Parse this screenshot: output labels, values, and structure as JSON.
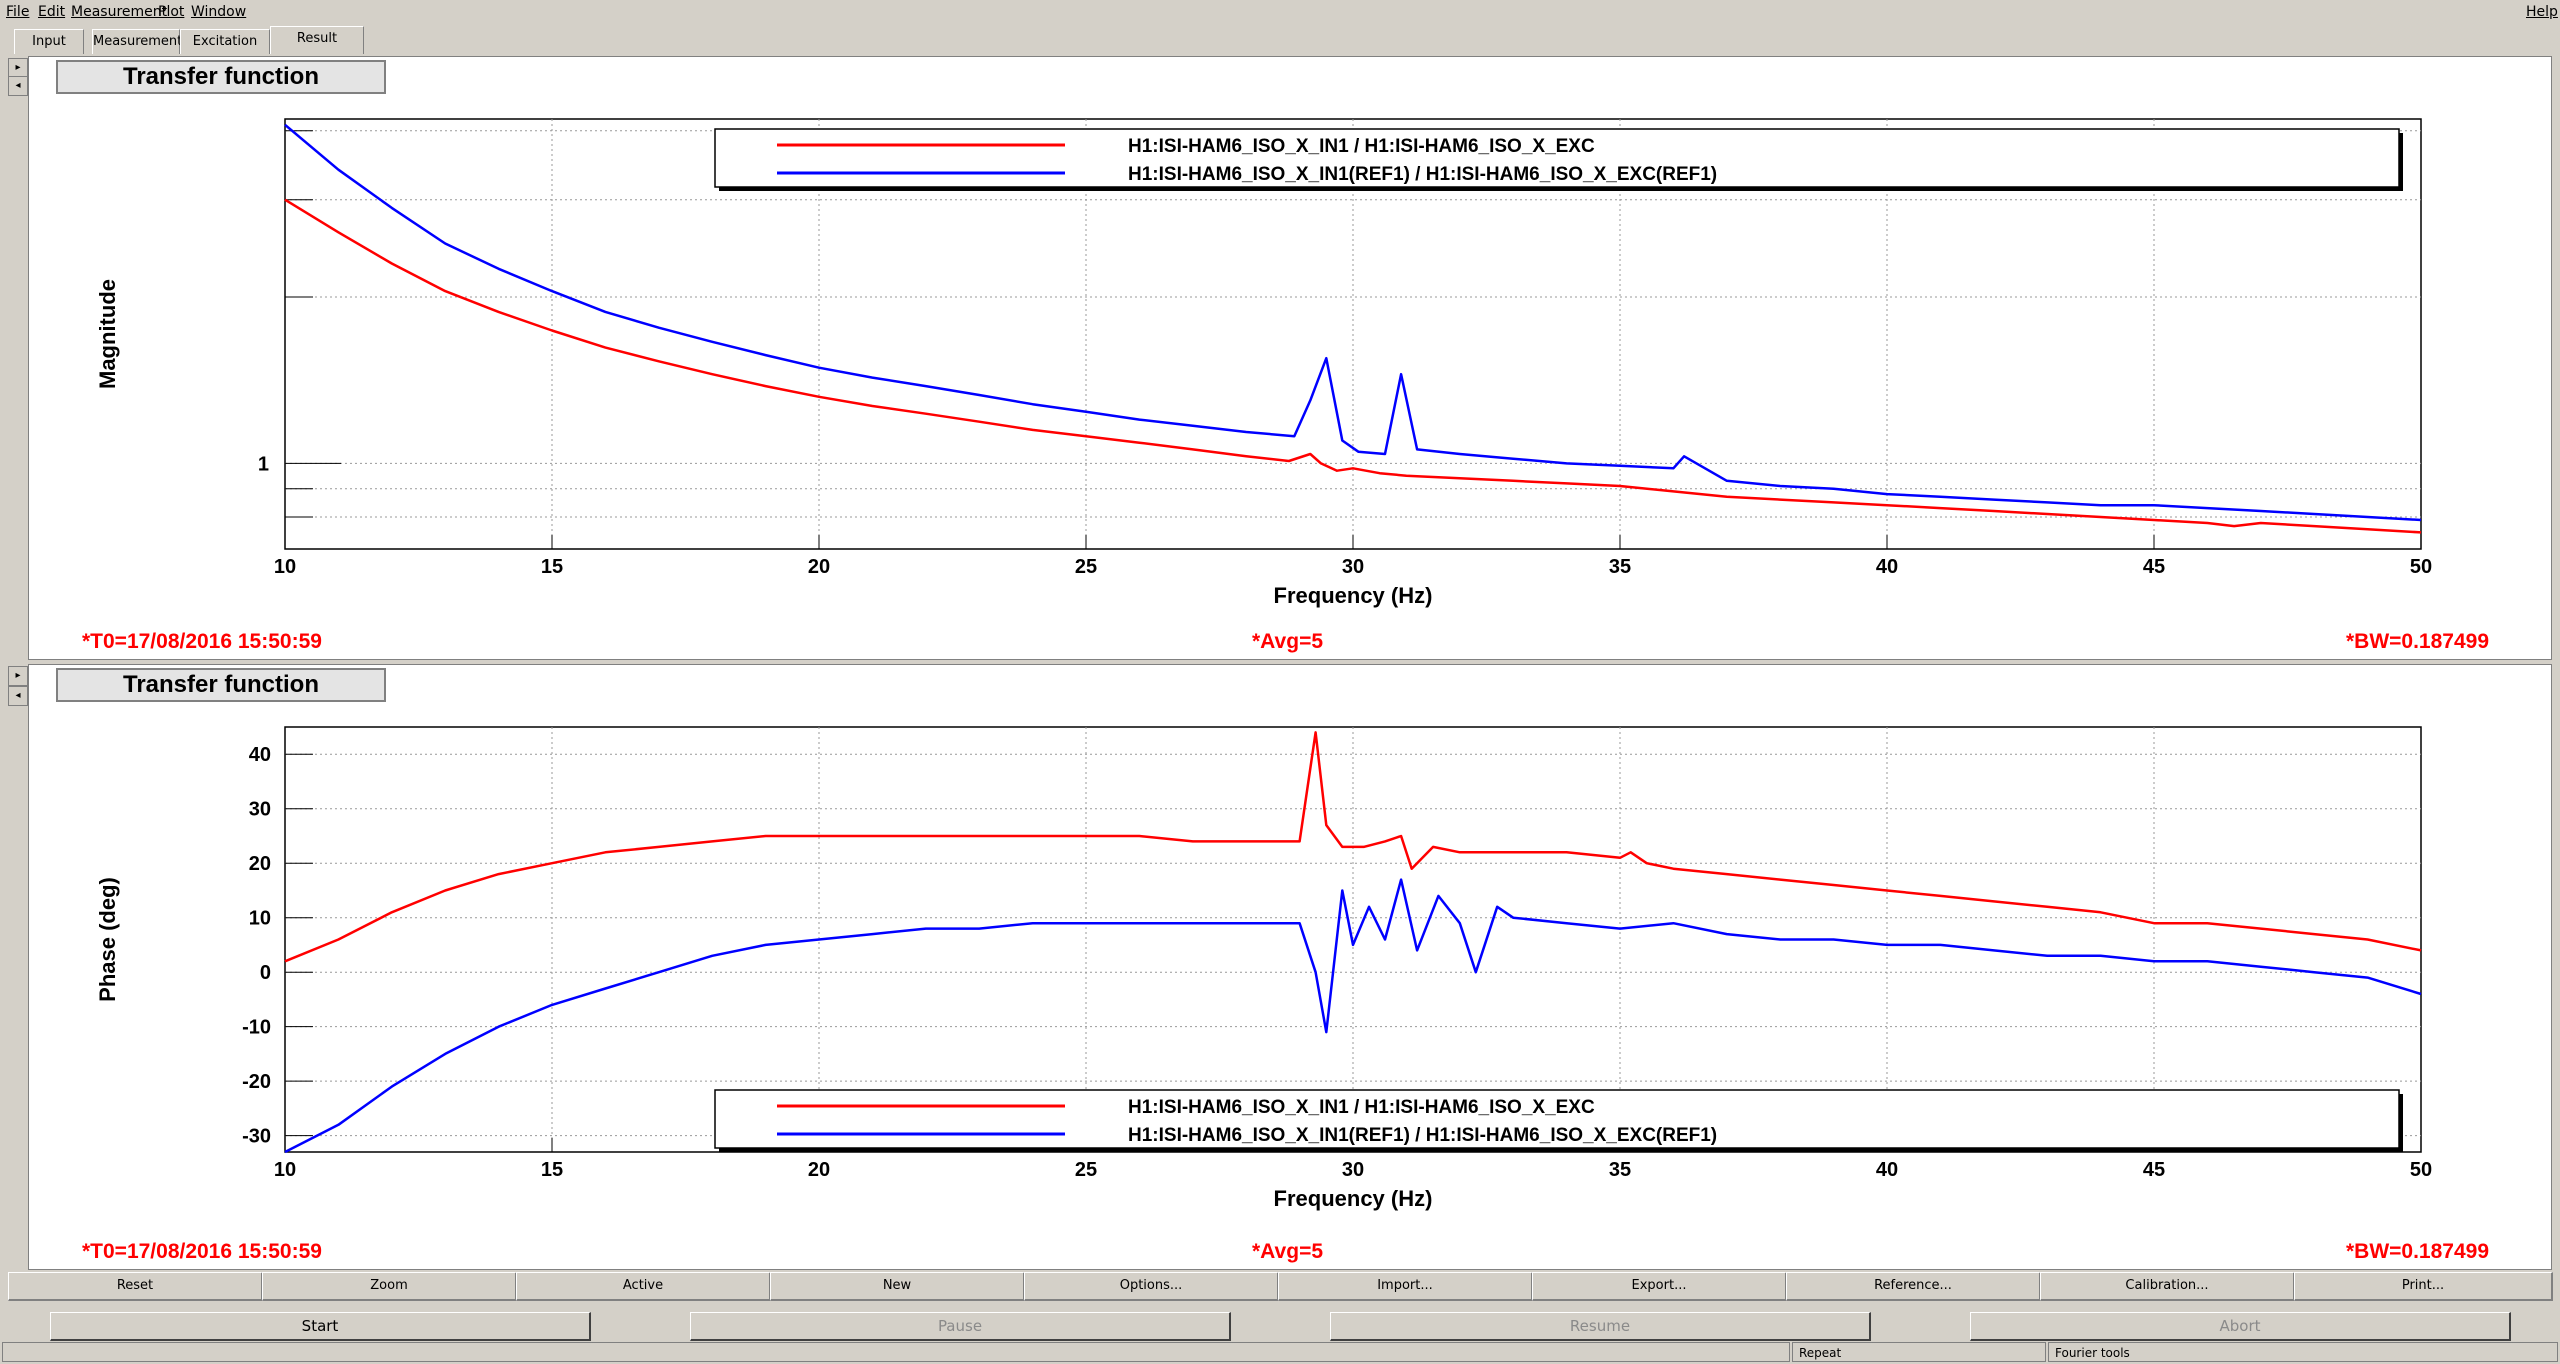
{
  "menu": {
    "items": [
      {
        "label": "File"
      },
      {
        "label": "Edit"
      },
      {
        "label": "Measurement"
      },
      {
        "label": "Plot"
      },
      {
        "label": "Window"
      }
    ],
    "help": "Help"
  },
  "tabs": [
    {
      "label": "Input"
    },
    {
      "label": "Measurement"
    },
    {
      "label": "Excitation"
    },
    {
      "label": "Result",
      "active": true
    }
  ],
  "colors": {
    "series_red": "#ff0000",
    "series_blue": "#0000ff",
    "status_red": "#ff0000",
    "panel_bg": "#ffffff",
    "chrome": "#d4d0c8"
  },
  "panels": [
    {
      "title": "Transfer function",
      "t0": "*T0=17/08/2016 15:50:59",
      "avg": "*Avg=5",
      "bw": "*BW=0.187499",
      "ylabel": "Magnitude",
      "xlabel": "Frequency (Hz)",
      "legend": [
        "H1:ISI-HAM6_ISO_X_IN1 / H1:ISI-HAM6_ISO_X_EXC",
        "H1:ISI-HAM6_ISO_X_IN1(REF1) / H1:ISI-HAM6_ISO_X_EXC(REF1)"
      ]
    },
    {
      "title": "Transfer function",
      "t0": "*T0=17/08/2016 15:50:59",
      "avg": "*Avg=5",
      "bw": "*BW=0.187499",
      "ylabel": "Phase (deg)",
      "xlabel": "Frequency (Hz)",
      "legend": [
        "H1:ISI-HAM6_ISO_X_IN1 / H1:ISI-HAM6_ISO_X_EXC",
        "H1:ISI-HAM6_ISO_X_IN1(REF1) / H1:ISI-HAM6_ISO_X_EXC(REF1)"
      ]
    }
  ],
  "tool_buttons": [
    "Reset",
    "Zoom",
    "Active",
    "New",
    "Options...",
    "Import...",
    "Export...",
    "Reference...",
    "Calibration...",
    "Print..."
  ],
  "control_buttons": [
    {
      "label": "Start",
      "enabled": true
    },
    {
      "label": "Pause",
      "enabled": false
    },
    {
      "label": "Resume",
      "enabled": false
    },
    {
      "label": "Abort",
      "enabled": false
    }
  ],
  "status": {
    "repeat": "Repeat",
    "fourier": "Fourier tools"
  },
  "chart_data": [
    {
      "type": "line",
      "xlim": [
        10,
        50
      ],
      "ylim": [
        0.7,
        4.2
      ],
      "yscale": "log",
      "grid": true,
      "legend_position": "top-right",
      "x_ticks": [
        10,
        15,
        20,
        25,
        30,
        35,
        40,
        45,
        50
      ],
      "y_tick_labels": [
        {
          "value": 1,
          "label": "1"
        }
      ],
      "series": [
        {
          "name": "H1:ISI-HAM6_ISO_X_IN1 / H1:ISI-HAM6_ISO_X_EXC",
          "color": "#ff0000",
          "x": [
            10,
            11,
            12,
            13,
            14,
            15,
            16,
            17,
            18,
            19,
            20,
            21,
            22,
            23,
            24,
            25,
            26,
            27,
            28,
            28.8,
            29.2,
            29.4,
            29.7,
            30,
            30.5,
            31,
            32,
            33,
            34,
            35,
            36,
            37,
            38,
            39,
            40,
            41,
            42,
            43,
            44,
            45,
            46,
            46.5,
            47,
            48,
            49,
            50
          ],
          "y": [
            3.0,
            2.62,
            2.3,
            2.05,
            1.88,
            1.74,
            1.62,
            1.53,
            1.45,
            1.38,
            1.32,
            1.27,
            1.23,
            1.19,
            1.15,
            1.12,
            1.09,
            1.06,
            1.03,
            1.01,
            1.04,
            1.0,
            0.97,
            0.98,
            0.96,
            0.95,
            0.94,
            0.93,
            0.92,
            0.91,
            0.89,
            0.87,
            0.86,
            0.85,
            0.84,
            0.83,
            0.82,
            0.81,
            0.8,
            0.79,
            0.78,
            0.77,
            0.78,
            0.77,
            0.76,
            0.75
          ]
        },
        {
          "name": "H1:ISI-HAM6_ISO_X_IN1(REF1) / H1:ISI-HAM6_ISO_X_EXC(REF1)",
          "color": "#0000ff",
          "x": [
            10,
            11,
            12,
            13,
            14,
            15,
            16,
            17,
            18,
            19,
            20,
            21,
            22,
            23,
            24,
            25,
            26,
            27,
            28,
            28.9,
            29.2,
            29.5,
            29.8,
            30.1,
            30.6,
            30.9,
            31.2,
            32,
            33,
            34,
            35,
            36,
            36.2,
            37,
            38,
            39,
            40,
            41,
            42,
            43,
            44,
            45,
            46,
            47,
            48,
            49,
            50
          ],
          "y": [
            4.1,
            3.4,
            2.9,
            2.5,
            2.25,
            2.05,
            1.88,
            1.76,
            1.66,
            1.57,
            1.49,
            1.43,
            1.38,
            1.33,
            1.28,
            1.24,
            1.2,
            1.17,
            1.14,
            1.12,
            1.3,
            1.55,
            1.1,
            1.05,
            1.04,
            1.45,
            1.06,
            1.04,
            1.02,
            1.0,
            0.99,
            0.98,
            1.03,
            0.93,
            0.91,
            0.9,
            0.88,
            0.87,
            0.86,
            0.85,
            0.84,
            0.84,
            0.83,
            0.82,
            0.81,
            0.8,
            0.79
          ]
        }
      ]
    },
    {
      "type": "line",
      "xlim": [
        10,
        50
      ],
      "ylim": [
        -33,
        45
      ],
      "grid": true,
      "legend_position": "bottom-right",
      "x_ticks": [
        10,
        15,
        20,
        25,
        30,
        35,
        40,
        45,
        50
      ],
      "y_ticks": [
        -30,
        -20,
        -10,
        0,
        10,
        20,
        30,
        40
      ],
      "series": [
        {
          "name": "H1:ISI-HAM6_ISO_X_IN1 / H1:ISI-HAM6_ISO_X_EXC",
          "color": "#ff0000",
          "x": [
            10,
            11,
            12,
            13,
            14,
            15,
            16,
            17,
            18,
            19,
            20,
            21,
            22,
            23,
            24,
            25,
            26,
            27,
            28,
            29,
            29.3,
            29.5,
            29.8,
            30.2,
            30.6,
            30.9,
            31.1,
            31.5,
            32,
            33,
            34,
            35,
            35.2,
            35.5,
            36,
            37,
            38,
            39,
            40,
            41,
            42,
            43,
            44,
            45,
            46,
            47,
            48,
            49,
            50
          ],
          "y": [
            2,
            6,
            11,
            15,
            18,
            20,
            22,
            23,
            24,
            25,
            25,
            25,
            25,
            25,
            25,
            25,
            25,
            24,
            24,
            24,
            44,
            27,
            23,
            23,
            24,
            25,
            19,
            23,
            22,
            22,
            22,
            21,
            22,
            20,
            19,
            18,
            17,
            16,
            15,
            14,
            13,
            12,
            11,
            9,
            9,
            8,
            7,
            6,
            4
          ]
        },
        {
          "name": "H1:ISI-HAM6_ISO_X_IN1(REF1) / H1:ISI-HAM6_ISO_X_EXC(REF1)",
          "color": "#0000ff",
          "x": [
            10,
            11,
            12,
            13,
            14,
            15,
            16,
            17,
            18,
            19,
            20,
            21,
            22,
            23,
            24,
            25,
            26,
            27,
            28,
            29,
            29.3,
            29.5,
            29.8,
            30.0,
            30.3,
            30.6,
            30.9,
            31.2,
            31.6,
            32,
            32.3,
            32.7,
            33,
            34,
            35,
            36,
            37,
            38,
            39,
            40,
            41,
            42,
            43,
            44,
            45,
            46,
            47,
            48,
            49,
            50
          ],
          "y": [
            -33,
            -28,
            -21,
            -15,
            -10,
            -6,
            -3,
            0,
            3,
            5,
            6,
            7,
            8,
            8,
            9,
            9,
            9,
            9,
            9,
            9,
            0,
            -11,
            15,
            5,
            12,
            6,
            17,
            4,
            14,
            9,
            0,
            12,
            10,
            9,
            8,
            9,
            7,
            6,
            6,
            5,
            5,
            4,
            3,
            3,
            2,
            2,
            1,
            0,
            -1,
            -4
          ]
        }
      ]
    }
  ]
}
